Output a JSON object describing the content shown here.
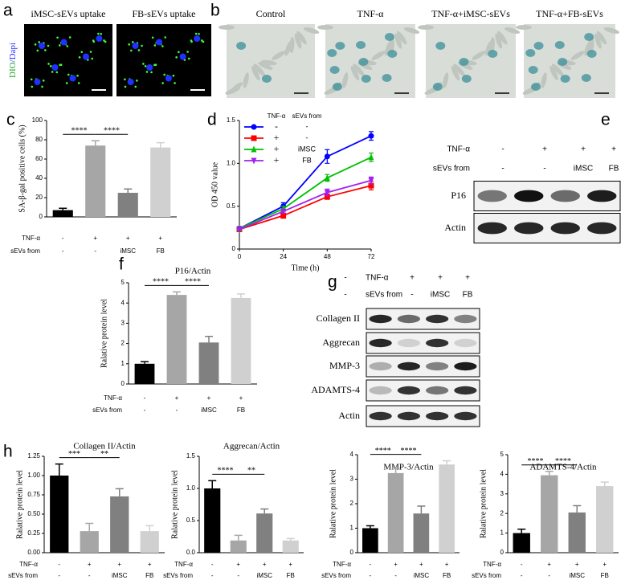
{
  "panel_a": {
    "letter": "a",
    "label_dio": "DIO",
    "label_dapi": "/Dapi",
    "images": [
      "iMSC-sEVs uptake",
      "FB-sEVs uptake"
    ]
  },
  "panel_b": {
    "letter": "b",
    "images": [
      "Control",
      "TNF-α",
      "TNF-α+iMSC-sEVs",
      "TNF-α+FB-sEVs"
    ]
  },
  "blot_e": {
    "letter": "e",
    "conditions": [
      {
        "label": "TNF-α",
        "values": [
          "-",
          "+",
          "+",
          "+"
        ]
      },
      {
        "label": "sEVs from",
        "values": [
          "-",
          "-",
          "iMSC",
          "FB"
        ]
      }
    ],
    "rows": [
      "P16",
      "Actin"
    ]
  },
  "blot_g": {
    "letter": "g",
    "conditions": [
      {
        "label": "TNF-α",
        "values": [
          "-",
          "+",
          "+",
          "+"
        ]
      },
      {
        "label": "sEVs from",
        "values": [
          "-",
          "-",
          "iMSC",
          "FB"
        ]
      }
    ],
    "rows": [
      "Collagen II",
      "Aggrecan",
      "MMP-3",
      "ADAMTS-4",
      "Actin"
    ]
  },
  "chart_data": [
    {
      "panel": "c",
      "type": "bar",
      "ylabel": "SA-β-gal positive cells (%)",
      "ylim": [
        0,
        100
      ],
      "yticks": [
        0,
        20,
        40,
        60,
        80,
        100
      ],
      "values": [
        7,
        74,
        25,
        72
      ],
      "errors": [
        2,
        5,
        4,
        5
      ],
      "colors": [
        "#000000",
        "#a6a6a6",
        "#808080",
        "#d0d0d0"
      ],
      "significance": [
        "****",
        "****"
      ],
      "conditions": [
        {
          "label": "TNF-α",
          "values": [
            "-",
            "+",
            "+",
            "+"
          ]
        },
        {
          "label": "sEVs from",
          "values": [
            "-",
            "-",
            "iMSC",
            "FB"
          ]
        }
      ]
    },
    {
      "panel": "d",
      "type": "line",
      "xlabel": "Time (h)",
      "ylabel": "OD 450 value",
      "x": [
        0,
        24,
        48,
        72
      ],
      "xlim": [
        0,
        72
      ],
      "xticks": [
        0,
        24,
        48,
        72
      ],
      "ylim": [
        0,
        1.5
      ],
      "yticks": [
        0,
        0.5,
        {
          "value": 1,
          "label": "1.0"
        },
        1.5
      ],
      "legend_header": [
        "TNF-α",
        "sEVs from"
      ],
      "series": [
        {
          "tnf": "-",
          "sevs": "-",
          "color": "#0000ff",
          "marker": "circle",
          "values": [
            0.24,
            0.5,
            1.08,
            1.32
          ],
          "errors": [
            0.02,
            0.04,
            0.08,
            0.05
          ]
        },
        {
          "tnf": "+",
          "sevs": "-",
          "color": "#ff0000",
          "marker": "square",
          "values": [
            0.23,
            0.39,
            0.61,
            0.74
          ],
          "errors": [
            0.01,
            0.03,
            0.03,
            0.05
          ]
        },
        {
          "tnf": "+",
          "sevs": "iMSC",
          "color": "#00c000",
          "marker": "triangle-up",
          "values": [
            0.24,
            0.47,
            0.83,
            1.07
          ],
          "errors": [
            0.01,
            0.03,
            0.04,
            0.05
          ]
        },
        {
          "tnf": "+",
          "sevs": "FB",
          "color": "#a020f0",
          "marker": "triangle-down",
          "values": [
            0.23,
            0.44,
            0.66,
            0.8
          ],
          "errors": [
            0.01,
            0.02,
            0.04,
            0.04
          ]
        }
      ]
    },
    {
      "panel": "f",
      "type": "bar",
      "title": "P16/Actin",
      "ylabel": "Ralative protein level",
      "ylim": [
        0,
        5
      ],
      "yticks": [
        0,
        1,
        2,
        3,
        4,
        5
      ],
      "values": [
        1,
        4.4,
        2.05,
        4.25
      ],
      "errors": [
        0.1,
        0.15,
        0.3,
        0.2
      ],
      "colors": [
        "#000000",
        "#a6a6a6",
        "#808080",
        "#d0d0d0"
      ],
      "significance": [
        "****",
        "****"
      ],
      "conditions": [
        {
          "label": "TNF-α",
          "values": [
            "-",
            "+",
            "+",
            "+"
          ]
        },
        {
          "label": "sEVs from",
          "values": [
            "-",
            "-",
            "iMSC",
            "FB"
          ]
        }
      ]
    },
    {
      "panel": "h",
      "type": "bar",
      "title": "Collagen II/Actin",
      "ylabel": "Ralative protein level",
      "ylim": [
        0,
        1.25
      ],
      "yticks": [
        {
          "value": 0,
          "label": "0.00"
        },
        0.25,
        {
          "value": 0.5,
          "label": "0.50"
        },
        0.75,
        {
          "value": 1,
          "label": "1.00"
        },
        1.25
      ],
      "values": [
        1,
        0.28,
        0.73,
        0.28
      ],
      "errors": [
        0.15,
        0.1,
        0.1,
        0.07
      ],
      "colors": [
        "#000000",
        "#a6a6a6",
        "#808080",
        "#d0d0d0"
      ],
      "significance": [
        "***",
        "**"
      ],
      "conditions": [
        {
          "label": "TNF-α",
          "values": [
            "-",
            "+",
            "+",
            "+"
          ]
        },
        {
          "label": "sEVs from",
          "values": [
            "-",
            "-",
            "iMSC",
            "FB"
          ]
        }
      ]
    },
    {
      "type": "bar",
      "title": "Aggrecan/Actin",
      "ylabel": "Ralative protein level",
      "ylim": [
        0,
        1.5
      ],
      "yticks": [
        {
          "value": 0,
          "label": "0.0"
        },
        0.5,
        {
          "value": 1,
          "label": "1.0"
        },
        1.5
      ],
      "values": [
        1,
        0.19,
        0.61,
        0.19
      ],
      "errors": [
        0.12,
        0.08,
        0.07,
        0.03
      ],
      "colors": [
        "#000000",
        "#a6a6a6",
        "#808080",
        "#d0d0d0"
      ],
      "significance": [
        "****",
        "**"
      ],
      "conditions": [
        {
          "label": "TNF-α",
          "values": [
            "-",
            "+",
            "+",
            "+"
          ]
        },
        {
          "label": "sEVs from",
          "values": [
            "-",
            "-",
            "iMSC",
            "FB"
          ]
        }
      ]
    },
    {
      "type": "bar",
      "title": "MMP-3/Actin",
      "ylabel": "Ralative protein level",
      "ylim": [
        0,
        4
      ],
      "yticks": [
        0,
        1,
        2,
        3,
        4
      ],
      "values": [
        1,
        3.25,
        1.6,
        3.6
      ],
      "errors": [
        0.1,
        0.2,
        0.3,
        0.15
      ],
      "colors": [
        "#000000",
        "#a6a6a6",
        "#808080",
        "#d0d0d0"
      ],
      "significance": [
        "****",
        "****"
      ],
      "conditions": [
        {
          "label": "TNF-α",
          "values": [
            "-",
            "+",
            "+",
            "+"
          ]
        },
        {
          "label": "sEVs from",
          "values": [
            "-",
            "-",
            "iMSC",
            "FB"
          ]
        }
      ]
    },
    {
      "type": "bar",
      "title": "ADAMTS-4/Actin",
      "ylabel": "Ralative protein level",
      "ylim": [
        0,
        5
      ],
      "yticks": [
        0,
        1,
        2,
        3,
        4,
        5
      ],
      "values": [
        1,
        3.95,
        2.05,
        3.4
      ],
      "errors": [
        0.2,
        0.2,
        0.35,
        0.2
      ],
      "colors": [
        "#000000",
        "#a6a6a6",
        "#808080",
        "#d0d0d0"
      ],
      "significance": [
        "****",
        "****"
      ],
      "conditions": [
        {
          "label": "TNF-α",
          "values": [
            "-",
            "+",
            "+",
            "+"
          ]
        },
        {
          "label": "sEVs from",
          "values": [
            "-",
            "-",
            "iMSC",
            "FB"
          ]
        }
      ]
    }
  ]
}
